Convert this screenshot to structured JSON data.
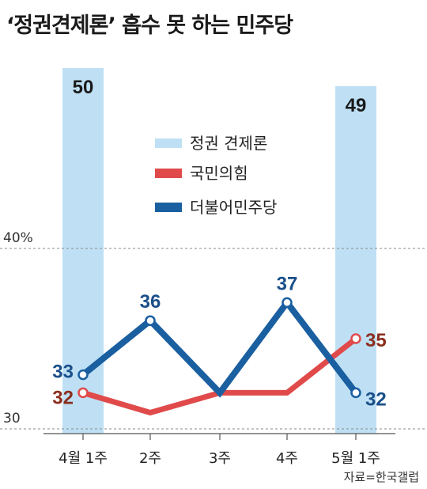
{
  "title": "‘정권견제론’ 흡수 못 하는 민주당",
  "source": "자료=한국갤럽",
  "colors": {
    "bar": "#bfe0f4",
    "ppp": "#e04a4a",
    "dpk": "#1a5fa0",
    "ppp_label": "#8b2e1e",
    "dpk_label": "#1a4f8a"
  },
  "chart_data": {
    "type": "line",
    "title": "",
    "categories": [
      "4월 1주",
      "2주",
      "3주",
      "4주",
      "5월 1주"
    ],
    "ytick_labels": [
      "40%",
      "30"
    ],
    "yticks": [
      40,
      30
    ],
    "ylim": [
      29.5,
      50.5
    ],
    "bars": {
      "name": "정권 견제론",
      "indices": [
        0,
        4
      ],
      "values": [
        50,
        49
      ]
    },
    "series": [
      {
        "name": "국민의힘",
        "values": [
          32,
          30.9,
          32,
          32,
          35
        ],
        "labeled": [
          0,
          4
        ]
      },
      {
        "name": "더불어민주당",
        "values": [
          33,
          36,
          32,
          37,
          32
        ],
        "labeled": [
          0,
          1,
          3,
          4
        ]
      }
    ],
    "legend": [
      "정권 견제론",
      "국민의힘",
      "더불어민주당"
    ],
    "legend_position": "top-center",
    "grid": "dashed horizontal at ticks"
  }
}
